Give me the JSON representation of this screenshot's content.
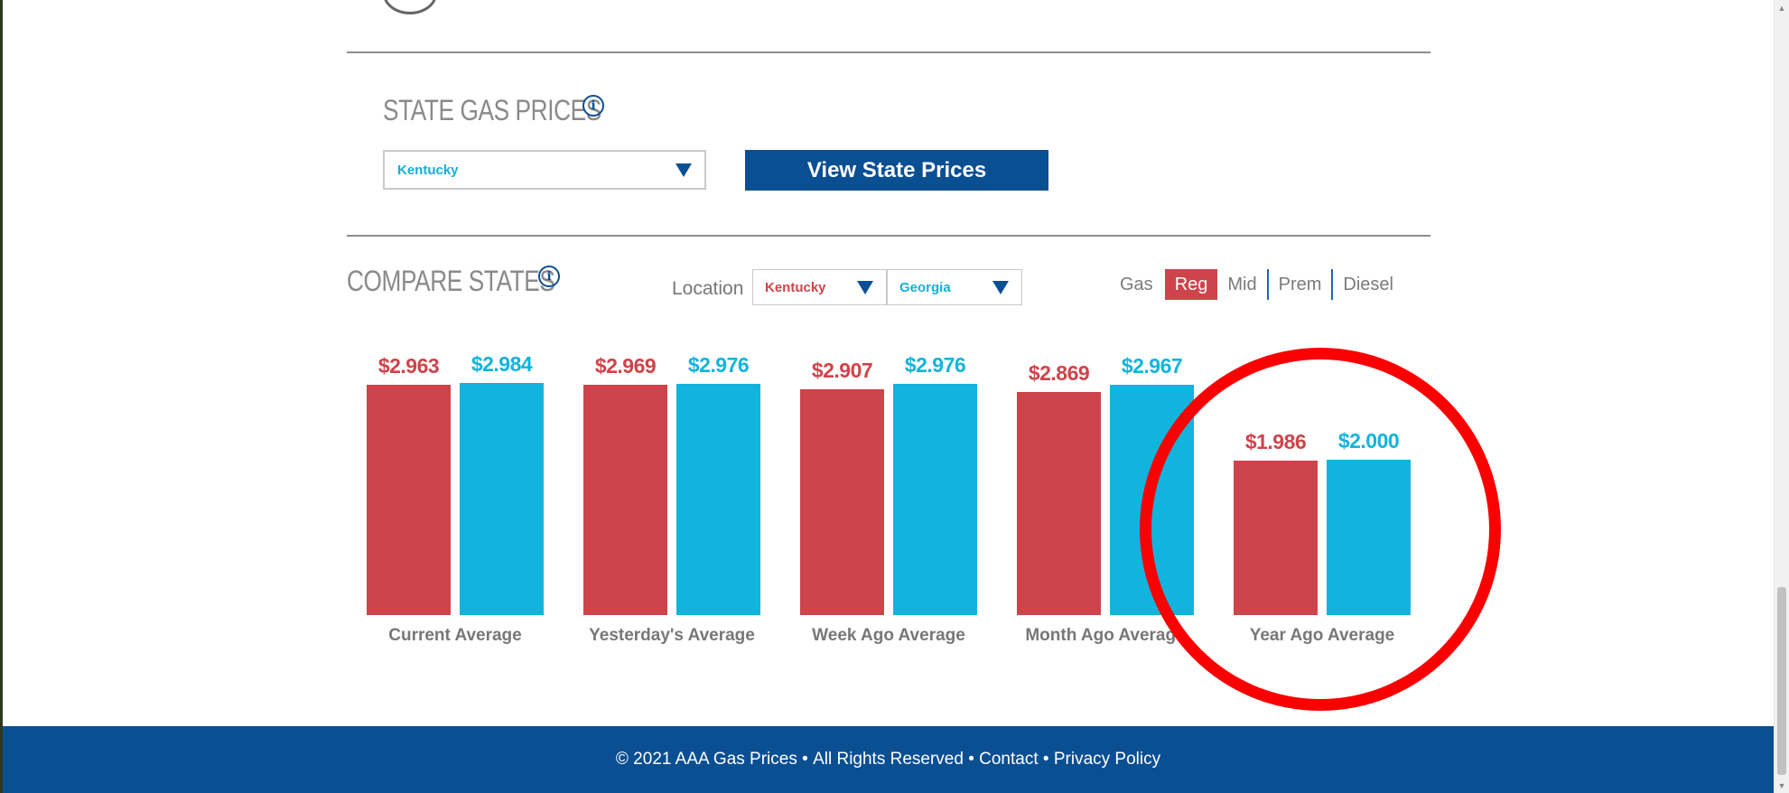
{
  "state_gas_prices": {
    "heading": "STATE GAS PRICES",
    "selected_state": "Kentucky",
    "button_label": "View State Prices"
  },
  "compare_states": {
    "heading": "COMPARE STATES",
    "location_label": "Location",
    "location_1": "Kentucky",
    "location_2": "Georgia",
    "fuel_label": "Gas",
    "fuel_tabs": [
      "Reg",
      "Mid",
      "Prem",
      "Diesel"
    ],
    "active_fuel": "Reg"
  },
  "chart_data": {
    "type": "bar",
    "categories": [
      "Current Average",
      "Yesterday's Average",
      "Week Ago Average",
      "Month Ago Average",
      "Year Ago Average"
    ],
    "series": [
      {
        "name": "Kentucky",
        "values": [
          2.963,
          2.969,
          2.907,
          2.869,
          1.986
        ],
        "labels": [
          "$2.963",
          "$2.969",
          "$2.907",
          "$2.869",
          "$1.986"
        ],
        "color": "#cf434a"
      },
      {
        "name": "Georgia",
        "values": [
          2.984,
          2.976,
          2.976,
          2.967,
          2.0
        ],
        "labels": [
          "$2.984",
          "$2.976",
          "$2.976",
          "$2.967",
          "$2.000"
        ],
        "color": "#11b4dc"
      }
    ],
    "legend": "none",
    "grid": false
  },
  "footer": {
    "copyright": "© 2021 AAA Gas Prices",
    "sep": " • ",
    "rights": "All Rights Reserved",
    "contact": "Contact",
    "privacy": "Privacy Policy"
  },
  "colors": {
    "brand_blue": "#0b4f93",
    "kentucky_red": "#cf434a",
    "georgia_cyan": "#11b4dc",
    "highlight_circle": "#fa0000"
  }
}
